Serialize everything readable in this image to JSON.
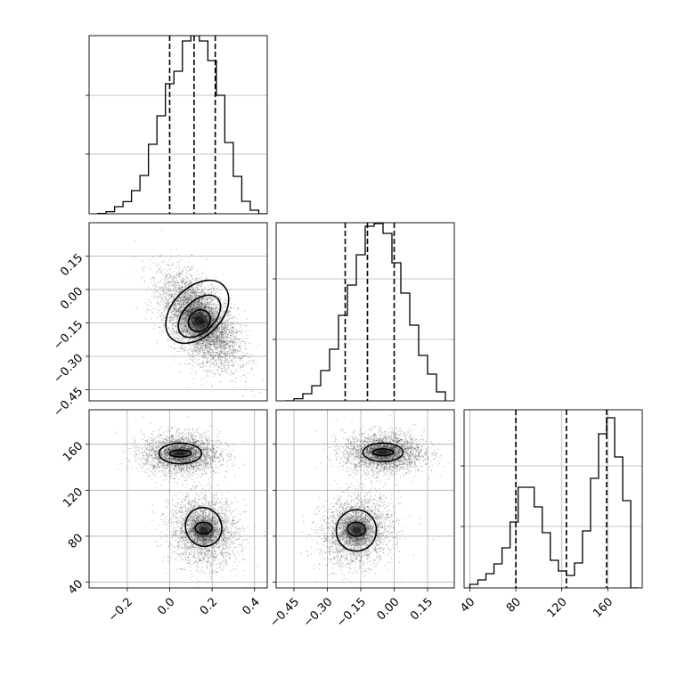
{
  "chart_data": {
    "type": "corner",
    "panels": [
      {
        "kind": "histogram",
        "row": 0,
        "col": 0,
        "title": "",
        "x_range": [
          -0.38,
          0.46
        ],
        "y_range": [
          0,
          1.0
        ],
        "x_ticks": [],
        "y_ticks": [],
        "y_tick_marks": [
          0.335,
          0.665
        ],
        "bins_left": [
          -0.34,
          -0.3,
          -0.26,
          -0.22,
          -0.18,
          -0.14,
          -0.1,
          -0.06,
          -0.02,
          0.02,
          0.06,
          0.1,
          0.14,
          0.18,
          0.22,
          0.26,
          0.3,
          0.34,
          0.38,
          0.42
        ],
        "bin_width": 0.04,
        "values": [
          0.002,
          0.012,
          0.04,
          0.068,
          0.13,
          0.215,
          0.39,
          0.55,
          0.73,
          0.8,
          0.97,
          1.0,
          0.97,
          0.86,
          0.665,
          0.4,
          0.21,
          0.07,
          0.02,
          0.0
        ],
        "quantiles": [
          0.0,
          0.115,
          0.215
        ]
      },
      {
        "kind": "2d",
        "row": 1,
        "col": 0,
        "x_range": [
          -0.38,
          0.46
        ],
        "y_range": [
          -0.5,
          0.3
        ],
        "x_ticks": [],
        "y_ticks": [
          "0.15",
          "0.00",
          "-0.15",
          "-0.30",
          "-0.45"
        ],
        "y_tick_values": [
          0.15,
          0.0,
          -0.15,
          -0.3,
          -0.45
        ],
        "modes": [
          {
            "x": 0.14,
            "y": -0.14,
            "sx": 0.09,
            "sy": 0.1,
            "rho": -0.55,
            "n": 5200
          }
        ],
        "contours": [
          {
            "x": 0.14,
            "y": -0.14,
            "rx": 0.055,
            "ry": 0.045,
            "angle": -45
          },
          {
            "x": 0.14,
            "y": -0.12,
            "rx": 0.12,
            "ry": 0.07,
            "angle": -45
          },
          {
            "x": 0.13,
            "y": -0.1,
            "rx": 0.175,
            "ry": 0.11,
            "angle": -45
          }
        ]
      },
      {
        "kind": "histogram",
        "row": 1,
        "col": 1,
        "x_range": [
          -0.53,
          0.27
        ],
        "y_range": [
          0,
          1.0
        ],
        "x_ticks": [],
        "y_ticks": [],
        "y_tick_marks": [
          0.345,
          0.685
        ],
        "bins_left": [
          -0.49,
          -0.45,
          -0.41,
          -0.37,
          -0.33,
          -0.29,
          -0.25,
          -0.21,
          -0.17,
          -0.13,
          -0.09,
          -0.05,
          -0.01,
          0.03,
          0.07,
          0.11,
          0.15,
          0.19
        ],
        "bin_width": 0.04,
        "values": [
          0.0,
          0.012,
          0.04,
          0.085,
          0.17,
          0.29,
          0.48,
          0.65,
          0.82,
          0.98,
          0.995,
          0.94,
          0.775,
          0.605,
          0.425,
          0.255,
          0.15,
          0.05
        ],
        "quantiles": [
          -0.22,
          -0.12,
          0.0
        ]
      },
      {
        "kind": "2d",
        "row": 2,
        "col": 0,
        "x_range": [
          -0.38,
          0.46
        ],
        "y_range": [
          35,
          190
        ],
        "x_ticks": [
          "-0.2",
          "0.0",
          "0.2",
          "0.4"
        ],
        "x_tick_values": [
          -0.2,
          0.0,
          0.2,
          0.4
        ],
        "y_ticks": [
          "40",
          "80",
          "120",
          "160"
        ],
        "y_tick_values": [
          40,
          80,
          120,
          160
        ],
        "modes": [
          {
            "x": 0.05,
            "y": 152,
            "sx": 0.09,
            "sy": 9,
            "rho": 0.0,
            "n": 2700
          },
          {
            "x": 0.16,
            "y": 85,
            "sx": 0.08,
            "sy": 15,
            "rho": -0.1,
            "n": 2600
          }
        ],
        "contours": [
          {
            "x": 0.05,
            "y": 152,
            "rx": 0.05,
            "ry": 3,
            "angle": 0
          },
          {
            "x": 0.05,
            "y": 152,
            "rx": 0.1,
            "ry": 9,
            "angle": 0
          },
          {
            "x": 0.16,
            "y": 87,
            "rx": 0.04,
            "ry": 5,
            "angle": 0
          },
          {
            "x": 0.16,
            "y": 88,
            "rx": 0.085,
            "ry": 17,
            "angle": -20
          }
        ]
      },
      {
        "kind": "2d",
        "row": 2,
        "col": 1,
        "x_range": [
          -0.53,
          0.27
        ],
        "y_range": [
          35,
          190
        ],
        "x_ticks": [
          "-0.45",
          "-0.30",
          "-0.15",
          "0.00",
          "0.15"
        ],
        "x_tick_values": [
          -0.45,
          -0.3,
          -0.15,
          0.0,
          0.15
        ],
        "y_ticks": [],
        "y_tick_values": [
          40,
          80,
          120,
          160
        ],
        "modes": [
          {
            "x": -0.05,
            "y": 153,
            "sx": 0.09,
            "sy": 9,
            "rho": 0.0,
            "n": 2700
          },
          {
            "x": -0.17,
            "y": 85,
            "sx": 0.08,
            "sy": 15,
            "rho": 0.1,
            "n": 2600
          }
        ],
        "contours": [
          {
            "x": -0.05,
            "y": 153,
            "rx": 0.045,
            "ry": 3,
            "angle": 0
          },
          {
            "x": -0.05,
            "y": 153,
            "rx": 0.09,
            "ry": 8,
            "angle": 0
          },
          {
            "x": -0.17,
            "y": 86,
            "rx": 0.04,
            "ry": 6,
            "angle": 0
          },
          {
            "x": -0.17,
            "y": 85,
            "rx": 0.09,
            "ry": 18,
            "angle": 10
          }
        ]
      },
      {
        "kind": "histogram",
        "row": 2,
        "col": 2,
        "x_range": [
          35,
          190
        ],
        "y_range": [
          0,
          1.0
        ],
        "x_ticks": [
          "40",
          "80",
          "120",
          "160"
        ],
        "x_tick_values": [
          40,
          80,
          120,
          160
        ],
        "y_ticks": [],
        "y_tick_marks": [
          0.345,
          0.685
        ],
        "bins_left": [
          40,
          47,
          54,
          61,
          68,
          75,
          82,
          89,
          96,
          103,
          110,
          117,
          124,
          131,
          138,
          145,
          152,
          159,
          166,
          173,
          180
        ],
        "bin_width": 7,
        "values": [
          0.02,
          0.045,
          0.08,
          0.135,
          0.225,
          0.37,
          0.565,
          0.565,
          0.455,
          0.31,
          0.155,
          0.095,
          0.07,
          0.14,
          0.32,
          0.615,
          0.865,
          0.955,
          0.735,
          0.49,
          0.0
        ],
        "quantiles": [
          80,
          124,
          159
        ]
      }
    ]
  }
}
